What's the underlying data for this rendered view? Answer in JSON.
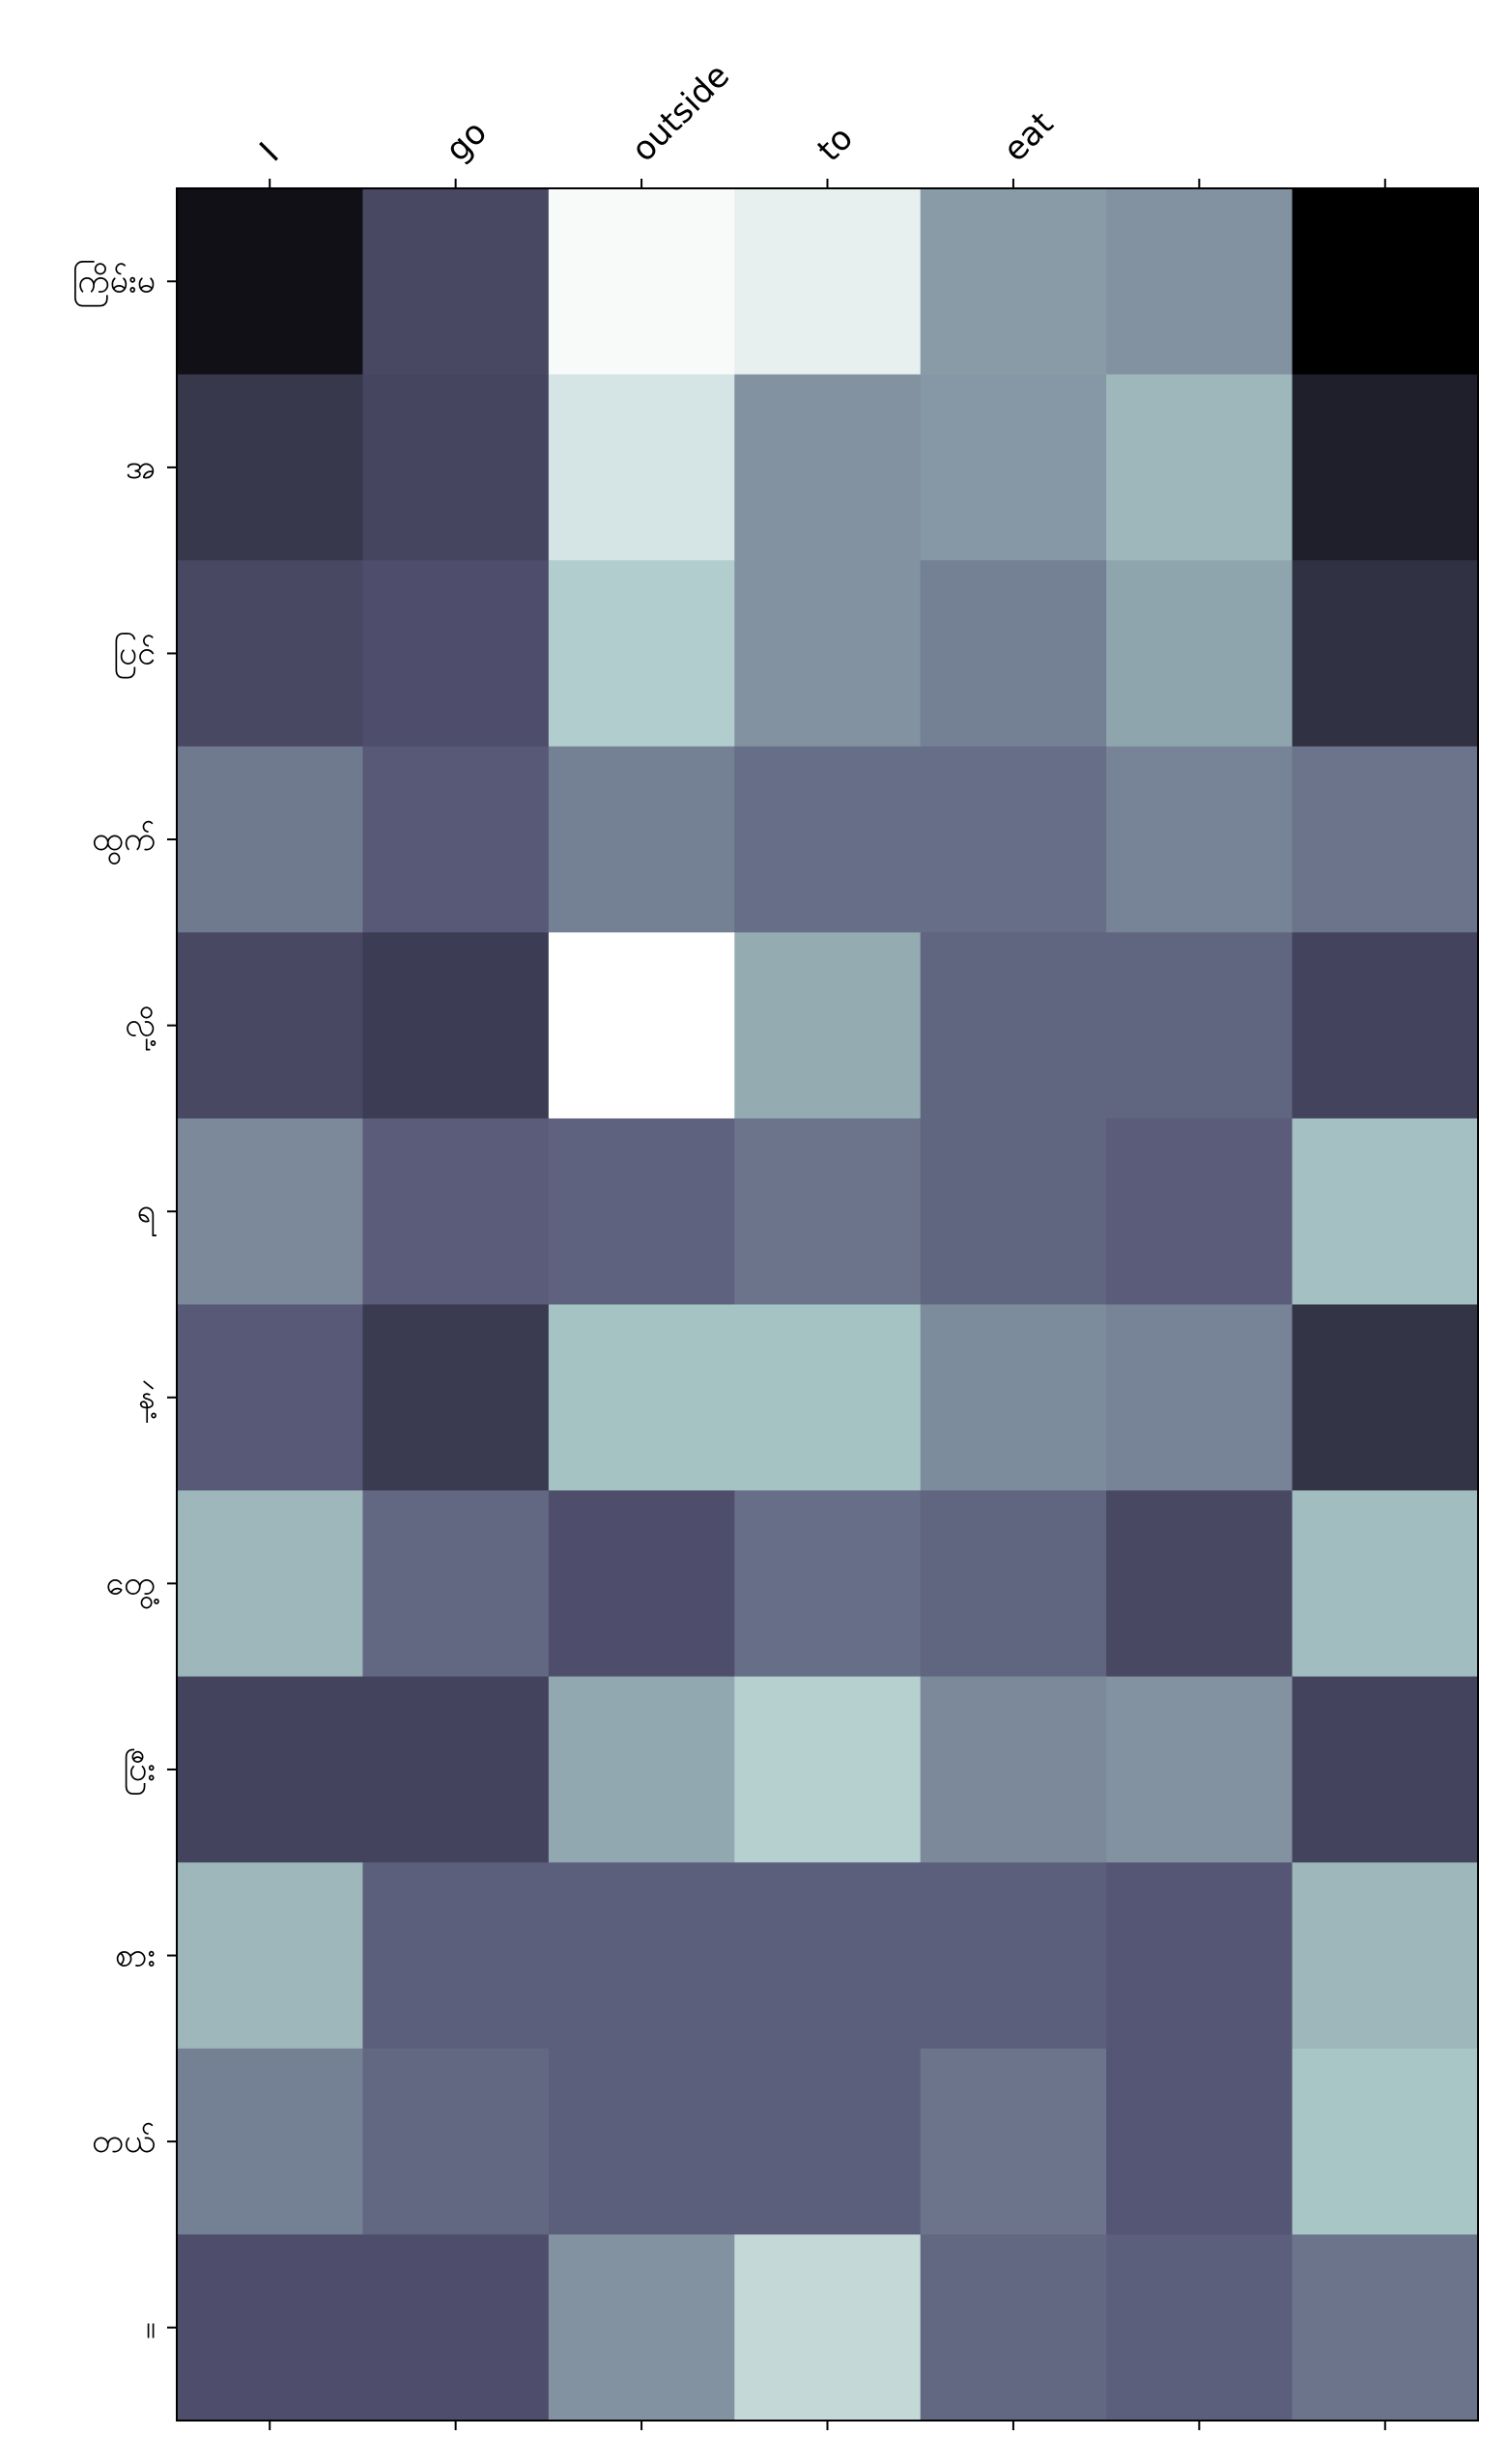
{
  "chart_data": {
    "type": "heatmap",
    "title": "",
    "xlabel": "",
    "ylabel": "",
    "grid": false,
    "colormap": "bone",
    "x": [
      "I",
      "go",
      "outside",
      "to",
      "eat",
      "",
      ""
    ],
    "y": [
      "ကြိမ်းမ",
      "အ",
      "ပြင်",
      "ထွက်",
      "လို့",
      "ရ",
      "နဲ့",
      "တွေ့",
      "ပြီး",
      "စား",
      "တယ်",
      "။"
    ],
    "values": [
      [
        0.07,
        0.32,
        0.98,
        0.93,
        0.61,
        0.58,
        0.0
      ],
      [
        0.25,
        0.31,
        0.88,
        0.58,
        0.6,
        0.7,
        0.14
      ],
      [
        0.32,
        0.35,
        0.78,
        0.58,
        0.52,
        0.64,
        0.22
      ],
      [
        0.5,
        0.39,
        0.52,
        0.46,
        0.46,
        0.53,
        0.48
      ],
      [
        0.32,
        0.27,
        1.0,
        0.66,
        0.43,
        0.43,
        0.3
      ],
      [
        0.55,
        0.4,
        0.42,
        0.48,
        0.43,
        0.4,
        0.73
      ],
      [
        0.39,
        0.26,
        0.74,
        0.74,
        0.56,
        0.53,
        0.23
      ],
      [
        0.7,
        0.44,
        0.35,
        0.46,
        0.43,
        0.32,
        0.72
      ],
      [
        0.3,
        0.3,
        0.65,
        0.79,
        0.55,
        0.58,
        0.3
      ],
      [
        0.7,
        0.41,
        0.41,
        0.41,
        0.41,
        0.38,
        0.7
      ],
      [
        0.52,
        0.44,
        0.41,
        0.41,
        0.48,
        0.38,
        0.75
      ],
      [
        0.35,
        0.35,
        0.58,
        0.83,
        0.44,
        0.41,
        0.48
      ]
    ]
  }
}
